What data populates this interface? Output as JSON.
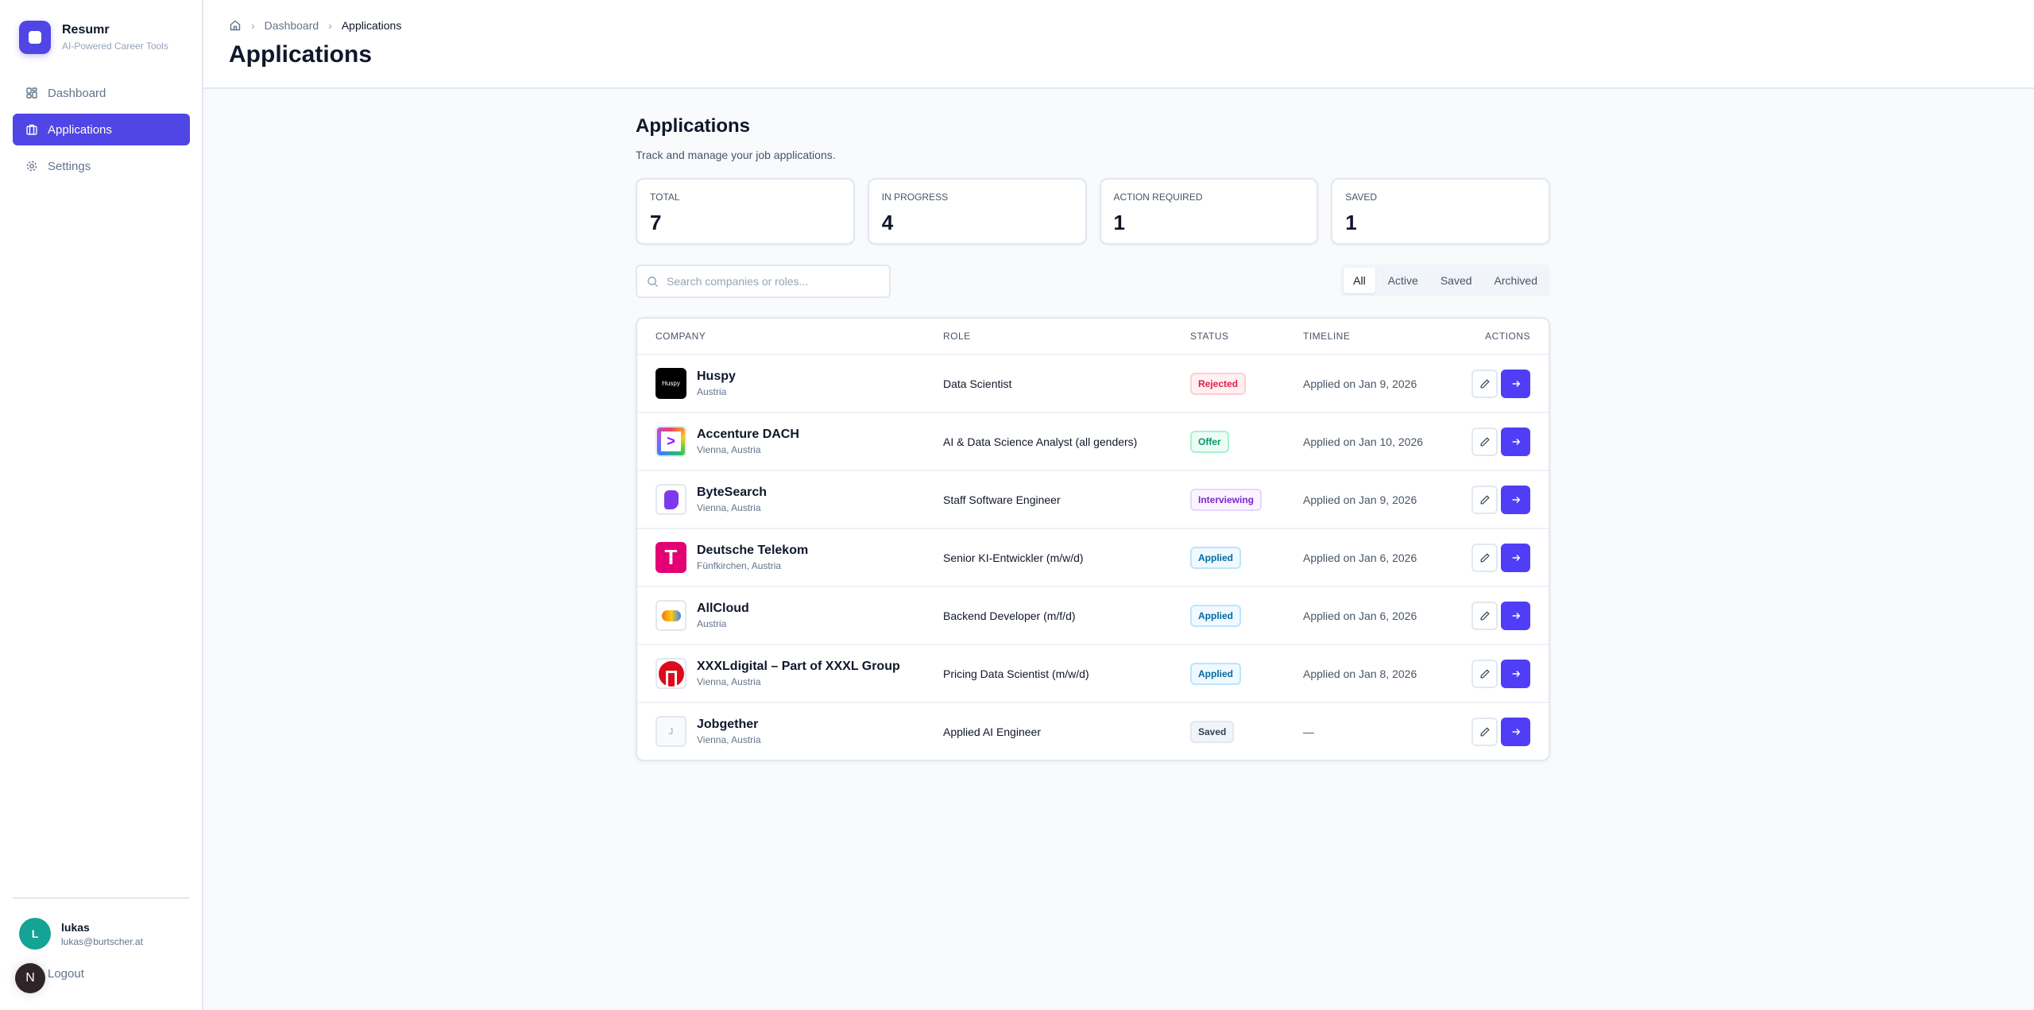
{
  "app": {
    "name": "Resumr",
    "tagline": "AI-Powered Career Tools",
    "accent": "#4f46e5"
  },
  "sidebar": {
    "items": [
      {
        "label": "Dashboard",
        "icon": "grid-icon"
      },
      {
        "label": "Applications",
        "icon": "briefcase-icon",
        "active": true
      },
      {
        "label": "Settings",
        "icon": "gear-icon"
      }
    ]
  },
  "user": {
    "initial": "L",
    "name": "lukas",
    "email": "lukas@burtscher.at",
    "logout": "Logout",
    "dev_badge": "N"
  },
  "header": {
    "breadcrumb": [
      "Dashboard",
      "Applications"
    ],
    "title": "Applications"
  },
  "main": {
    "title": "Applications",
    "subtitle": "Track and manage your job applications.",
    "stats": [
      {
        "label": "TOTAL",
        "value": "7"
      },
      {
        "label": "IN PROGRESS",
        "value": "4"
      },
      {
        "label": "ACTION REQUIRED",
        "value": "1"
      },
      {
        "label": "SAVED",
        "value": "1"
      }
    ],
    "search_placeholder": "Search companies or roles...",
    "filters": [
      "All",
      "Active",
      "Saved",
      "Archived"
    ],
    "active_filter": "All",
    "columns": [
      "COMPANY",
      "ROLE",
      "STATUS",
      "TIMELINE",
      "ACTIONS"
    ],
    "rows": [
      {
        "company": "Huspy",
        "location": "Austria",
        "role": "Data Scientist",
        "status": "Rejected",
        "timeline": "Applied on Jan 9, 2026",
        "logo_text": "Huspy"
      },
      {
        "company": "Accenture DACH",
        "location": "Vienna, Austria",
        "role": "AI & Data Science Analyst (all genders)",
        "status": "Offer",
        "timeline": "Applied on Jan 10, 2026"
      },
      {
        "company": "ByteSearch",
        "location": "Vienna, Austria",
        "role": "Staff Software Engineer",
        "status": "Interviewing",
        "timeline": "Applied on Jan 9, 2026"
      },
      {
        "company": "Deutsche Telekom",
        "location": "Fünfkirchen, Austria",
        "role": "Senior KI-Entwickler (m/w/d)",
        "status": "Applied",
        "timeline": "Applied on Jan 6, 2026"
      },
      {
        "company": "AllCloud",
        "location": "Austria",
        "role": "Backend Developer (m/f/d)",
        "status": "Applied",
        "timeline": "Applied on Jan 6, 2026"
      },
      {
        "company": "XXXLdigital – Part of XXXL Group",
        "location": "Vienna, Austria",
        "role": "Pricing Data Scientist (m/w/d)",
        "status": "Applied",
        "timeline": "Applied on Jan 8, 2026"
      },
      {
        "company": "Jobgether",
        "location": "Vienna, Austria",
        "role": "Applied AI Engineer",
        "status": "Saved",
        "timeline": "—",
        "logo_text": "J"
      }
    ]
  },
  "status_colors": {
    "Rejected": {
      "fg": "#e11d48",
      "bg": "#fff1f2",
      "bd": "#fecdd3"
    },
    "Offer": {
      "fg": "#059669",
      "bg": "#ecfdf5",
      "bd": "#a7f3d0"
    },
    "Interviewing": {
      "fg": "#7e22ce",
      "bg": "#faf5ff",
      "bd": "#e9d5ff"
    },
    "Applied": {
      "fg": "#0369a1",
      "bg": "#f0f9ff",
      "bd": "#bae6fd"
    },
    "Saved": {
      "fg": "#334155",
      "bg": "#f1f5f9",
      "bd": "#e2e8f0"
    }
  }
}
